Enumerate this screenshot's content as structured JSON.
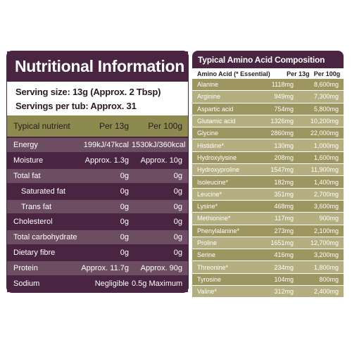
{
  "nutrition": {
    "title": "Nutritional Information",
    "serving_size": "Serving size: 13g (Approx. 2 Tbsp)",
    "servings_per_tub": "Servings per tub: Approx. 31",
    "headers": [
      "Typical nutrient",
      "Per 13g",
      "Per 100g"
    ],
    "rows": [
      {
        "name": "Energy",
        "per13": "199kJ/47kcal",
        "per100": "1530kJ/360kcal"
      },
      {
        "name": "Moisture",
        "per13": "Approx. 1.3g",
        "per100": "Approx. 10g"
      },
      {
        "name": "Total fat",
        "per13": "0g",
        "per100": "0g"
      },
      {
        "name": "Saturated fat",
        "per13": "0g",
        "per100": "0g"
      },
      {
        "name": "Trans fat",
        "per13": "0g",
        "per100": "0g"
      },
      {
        "name": "Cholesterol",
        "per13": "0g",
        "per100": "0g"
      },
      {
        "name": "Total carbohydrate",
        "per13": "0g",
        "per100": "0g"
      },
      {
        "name": "Dietary fibre",
        "per13": "0g",
        "per100": "0g"
      },
      {
        "name": "Protein",
        "per13": "Approx. 11.7g",
        "per100": "Approx. 90g"
      },
      {
        "name": "Sodium",
        "per13": "Negligible",
        "per100": "0.5g Maximum"
      }
    ]
  },
  "amino": {
    "title": "Typical Amino Acid Composition",
    "headers": [
      "Amino Acid (* Essential)",
      "Per 13g",
      "Per 100g"
    ],
    "rows": [
      {
        "name": "Alanine",
        "per13": "1118mg",
        "per100": "8,600mg"
      },
      {
        "name": "Arginine",
        "per13": "949mg",
        "per100": "7,300mg"
      },
      {
        "name": "Aspartic acid",
        "per13": "754mg",
        "per100": "5,800mg"
      },
      {
        "name": "Glutamic acid",
        "per13": "1326mg",
        "per100": "10,200mg"
      },
      {
        "name": "Glycine",
        "per13": "2860mg",
        "per100": "22,000mg"
      },
      {
        "name": "Histidine*",
        "per13": "130mg",
        "per100": "1,000mg"
      },
      {
        "name": "Hydroxylysine",
        "per13": "208mg",
        "per100": "1,600mg"
      },
      {
        "name": "Hydroxyproline",
        "per13": "1547mg",
        "per100": "11,900mg"
      },
      {
        "name": "Isoleucine*",
        "per13": "182mg",
        "per100": "1,400mg"
      },
      {
        "name": "Leucine*",
        "per13": "351mg",
        "per100": "2,700mg"
      },
      {
        "name": "Lysine*",
        "per13": "468mg",
        "per100": "3,600mg"
      },
      {
        "name": "Methionine*",
        "per13": "117mg",
        "per100": "900mg"
      },
      {
        "name": "Phenylalanine*",
        "per13": "273mg",
        "per100": "2,100mg"
      },
      {
        "name": "Proline",
        "per13": "1651mg",
        "per100": "12,700mg"
      },
      {
        "name": "Serine",
        "per13": "416mg",
        "per100": "3,200mg"
      },
      {
        "name": "Threonine*",
        "per13": "234mg",
        "per100": "1,800mg"
      },
      {
        "name": "Tyrosine",
        "per13": "104mg",
        "per100": "800mg"
      },
      {
        "name": "Valine*",
        "per13": "312mg",
        "per100": "2,400mg"
      }
    ]
  },
  "colors": {
    "plum": "#4a2541",
    "plum_light": "#6c4d62",
    "olive": "#8c8a4e",
    "olive_row_dark": "#9d9660",
    "olive_row_light": "#b4ae80"
  }
}
